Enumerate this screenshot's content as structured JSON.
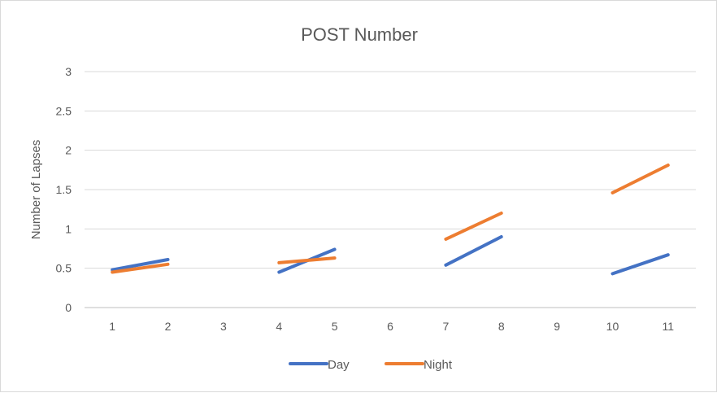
{
  "chart_data": {
    "type": "line",
    "title": "POST Number",
    "xlabel": "",
    "ylabel": "Number of Lapses",
    "categories": [
      "1",
      "2",
      "3",
      "4",
      "5",
      "6",
      "7",
      "8",
      "9",
      "10",
      "11"
    ],
    "ylim": [
      0,
      3
    ],
    "yticks": [
      "0",
      "0.5",
      "1",
      "1.5",
      "2",
      "2.5",
      "3"
    ],
    "grid": true,
    "legend_position": "bottom",
    "series": [
      {
        "name": "Day",
        "color": "#4472C4",
        "values": [
          0.48,
          0.61,
          null,
          0.45,
          0.74,
          null,
          0.54,
          0.9,
          null,
          0.43,
          0.67
        ]
      },
      {
        "name": "Night",
        "color": "#ED7D31",
        "values": [
          0.45,
          0.55,
          null,
          0.57,
          0.63,
          null,
          0.87,
          1.2,
          null,
          1.46,
          1.81
        ]
      }
    ]
  }
}
